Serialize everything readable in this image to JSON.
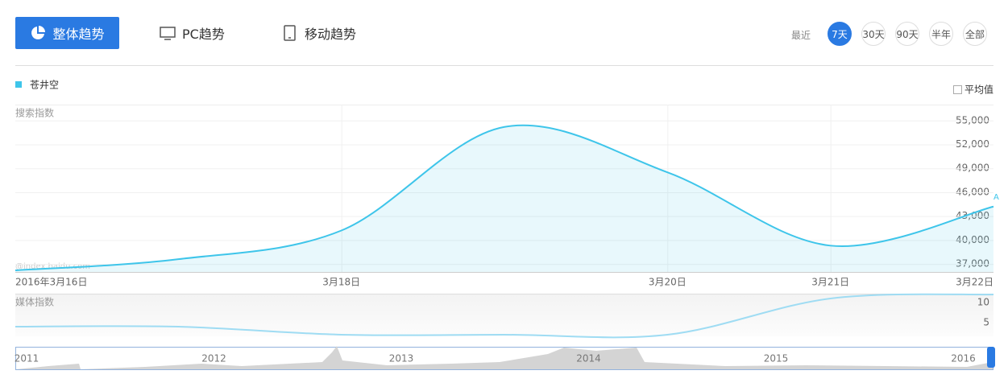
{
  "tabs": [
    "整体趋势",
    "PC趋势",
    "移动趋势"
  ],
  "range": {
    "label": "最近",
    "options": [
      "7天",
      "30天",
      "90天",
      "半年",
      "全部"
    ]
  },
  "average_toggle": "平均值",
  "watermark": "@index.baidu.com",
  "overview": {
    "years": [
      "2011",
      "2012",
      "2013",
      "2014",
      "2015",
      "2016"
    ]
  },
  "chart_data": [
    {
      "type": "line",
      "y_label": "搜索指数",
      "categories": [
        "2016年3月16日",
        null,
        "3月18日",
        null,
        "3月20日",
        "3月21日",
        "3月22日"
      ],
      "series": [
        {
          "name": "苍井空",
          "color": "#3ec5ea",
          "values": [
            36200,
            37600,
            41200,
            54200,
            48500,
            39300,
            44200
          ]
        }
      ],
      "ylim": [
        36000,
        57000
      ],
      "yticks": [
        {
          "value": 37000,
          "label": "37,000"
        },
        {
          "value": 40000,
          "label": "40,000"
        },
        {
          "value": 43000,
          "label": "43,000"
        },
        {
          "value": 46000,
          "label": "46,000"
        },
        {
          "value": 49000,
          "label": "49,000"
        },
        {
          "value": 52000,
          "label": "52,000"
        },
        {
          "value": 55000,
          "label": "55,000"
        }
      ],
      "grid": true,
      "annotation": "A"
    },
    {
      "type": "line",
      "y_label": "媒体指数",
      "categories": [
        null,
        null,
        null,
        null,
        null,
        null,
        null
      ],
      "series": [
        {
          "color": "#9fdcf3",
          "values": [
            4,
            4,
            2,
            2,
            2,
            11,
            12
          ]
        }
      ],
      "ylim": [
        1.6,
        12
      ],
      "yticks": [
        5,
        10
      ],
      "grid": false
    }
  ]
}
